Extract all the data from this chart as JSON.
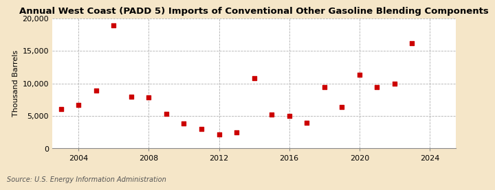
{
  "title": "Annual West Coast (PADD 5) Imports of Conventional Other Gasoline Blending Components",
  "ylabel": "Thousand Barrels",
  "source": "Source: U.S. Energy Information Administration",
  "background_color": "#f5e6c8",
  "plot_bg_color": "#ffffff",
  "marker_color": "#cc0000",
  "marker": "s",
  "marker_size": 4,
  "years": [
    2003,
    2004,
    2005,
    2006,
    2007,
    2008,
    2009,
    2010,
    2011,
    2012,
    2013,
    2014,
    2015,
    2016,
    2017,
    2018,
    2019,
    2020,
    2021,
    2022,
    2023
  ],
  "values": [
    6100,
    6700,
    8900,
    18900,
    8000,
    7800,
    5300,
    3800,
    2950,
    2150,
    2500,
    10800,
    5200,
    5000,
    3900,
    9400,
    6400,
    11300,
    9400,
    10000,
    16200
  ],
  "xlim": [
    2002.5,
    2025.5
  ],
  "ylim": [
    0,
    20000
  ],
  "yticks": [
    0,
    5000,
    10000,
    15000,
    20000
  ],
  "xticks": [
    2004,
    2008,
    2012,
    2016,
    2020,
    2024
  ],
  "grid_color": "#b0b0b0",
  "title_fontsize": 9.5,
  "label_fontsize": 8,
  "tick_fontsize": 8,
  "source_fontsize": 7
}
